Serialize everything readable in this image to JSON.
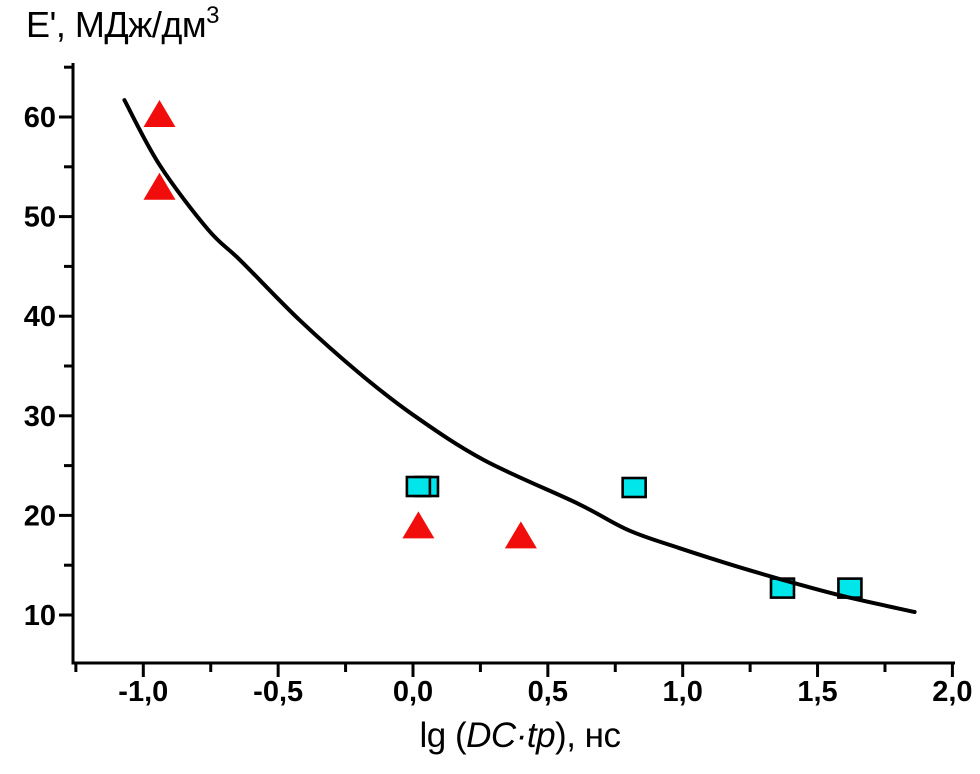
{
  "chart_data": {
    "type": "scatter",
    "title": "",
    "y_axis_title": {
      "text": "E', МДж/дм",
      "superscript": "3"
    },
    "x_axis_title": {
      "prefix": "lg (",
      "italic": "DC·tp",
      "suffix": "), нс"
    },
    "x_axis": {
      "range": [
        -1.26,
        2.01
      ],
      "ticks": [
        {
          "v": -1.0,
          "label": "-1,0"
        },
        {
          "v": -0.5,
          "label": "-0,5"
        },
        {
          "v": 0.0,
          "label": "0,0"
        },
        {
          "v": 0.5,
          "label": "0,5"
        },
        {
          "v": 1.0,
          "label": "1,0"
        },
        {
          "v": 1.5,
          "label": "1,5"
        },
        {
          "v": 2.0,
          "label": "2,0"
        }
      ],
      "minor_ticks": [
        -1.25,
        -0.75,
        -0.25,
        0.25,
        0.75,
        1.25,
        1.75
      ]
    },
    "y_axis": {
      "range": [
        5.2,
        65.4
      ],
      "ticks": [
        {
          "v": 10,
          "label": "10"
        },
        {
          "v": 20,
          "label": "20"
        },
        {
          "v": 30,
          "label": "30"
        },
        {
          "v": 40,
          "label": "40"
        },
        {
          "v": 50,
          "label": "50"
        },
        {
          "v": 60,
          "label": "60"
        }
      ],
      "minor_ticks": [
        15,
        25,
        35,
        45,
        55,
        65
      ]
    },
    "grid": false,
    "legend": false,
    "colors": {
      "axis": "#000000",
      "curve": "#000000",
      "triangle_fill": "#f20d0d",
      "square_fill": "#00e6ea",
      "square_border": "#000000"
    },
    "series": [
      {
        "name": "triangle-series",
        "marker": "triangle",
        "points": [
          [
            -0.94,
            60.3
          ],
          [
            -0.94,
            53.0
          ],
          [
            0.02,
            19.0
          ],
          [
            0.4,
            18.0
          ]
        ]
      },
      {
        "name": "square-series",
        "marker": "square",
        "points": [
          [
            0.05,
            22.9
          ],
          [
            0.02,
            22.9
          ],
          [
            0.82,
            22.8
          ],
          [
            1.37,
            12.7
          ],
          [
            1.62,
            12.7
          ]
        ]
      }
    ],
    "fit_curve": {
      "name": "fit-curve",
      "points": [
        [
          -1.07,
          61.7
        ],
        [
          -0.94,
          55.2
        ],
        [
          -0.76,
          48.7
        ],
        [
          -0.64,
          45.6
        ],
        [
          -0.42,
          39.6
        ],
        [
          -0.2,
          34.3
        ],
        [
          0.0,
          30.1
        ],
        [
          0.26,
          25.6
        ],
        [
          0.61,
          21.2
        ],
        [
          0.8,
          18.5
        ],
        [
          0.99,
          16.7
        ],
        [
          1.21,
          14.8
        ],
        [
          1.44,
          13.0
        ],
        [
          1.61,
          11.8
        ],
        [
          1.86,
          10.3
        ]
      ]
    }
  }
}
